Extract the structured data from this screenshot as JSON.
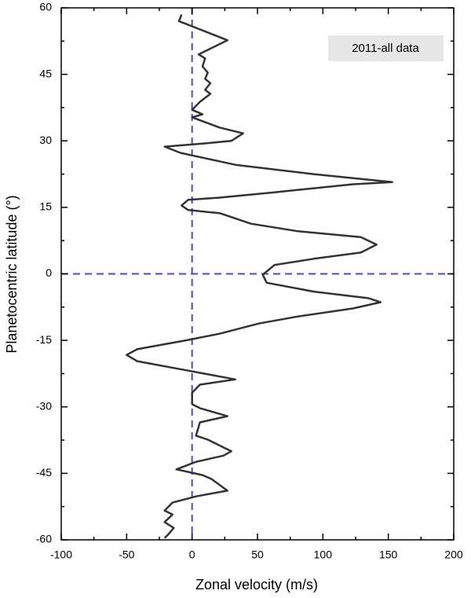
{
  "chart_data": {
    "type": "line",
    "x_label": "Zonal velocity (m/s)",
    "y_label": "Planetocentric latitude (°)",
    "annotation": "2011-all data",
    "xlim": [
      -100,
      200
    ],
    "xticks": [
      -100,
      -50,
      0,
      50,
      100,
      150,
      200
    ],
    "ylim": [
      -60,
      60
    ],
    "yticks": [
      -60,
      -45,
      -30,
      -15,
      0,
      15,
      30,
      45,
      60
    ],
    "reference_lines": {
      "x": 0,
      "y": 0,
      "color": "#4a4ad0"
    },
    "series": [
      {
        "color": "#333333",
        "x": [
          -8,
          -10,
          27,
          5,
          10,
          8,
          12,
          10,
          14,
          10,
          14,
          6,
          0,
          8,
          0,
          21,
          39,
          30,
          9,
          -21,
          -9,
          33,
          93,
          153,
          123,
          63,
          21,
          -3,
          -8,
          -3,
          21,
          45,
          81,
          129,
          141,
          129,
          93,
          63,
          54,
          57,
          93,
          135,
          144,
          123,
          81,
          51,
          21,
          -3,
          -42,
          -50,
          -42,
          -9,
          33,
          6,
          0,
          0,
          6,
          27,
          6,
          3,
          12,
          30,
          24,
          3,
          -12,
          8,
          15,
          27,
          3,
          -15,
          -21,
          -15,
          -21,
          -14,
          -18,
          -21
        ],
        "values": [
          58.5,
          57,
          52.7,
          49.5,
          48.6,
          46.8,
          45.4,
          44,
          43,
          41.5,
          40.6,
          38.8,
          37,
          36,
          35.3,
          33,
          31.7,
          30,
          29.4,
          28.7,
          27.3,
          24.6,
          22.5,
          20.7,
          20.2,
          18.4,
          17.2,
          16.7,
          15.4,
          14.4,
          13.7,
          11.3,
          9.6,
          8.3,
          6.6,
          4.8,
          3.4,
          2,
          -0.2,
          -2,
          -4,
          -5.5,
          -6.4,
          -7.8,
          -9.6,
          -11.2,
          -13.5,
          -14.9,
          -17,
          -18.3,
          -19.7,
          -21.5,
          -23.8,
          -25,
          -26.8,
          -29.4,
          -30.3,
          -32.1,
          -33.5,
          -36.5,
          -37.4,
          -40,
          -41,
          -42.4,
          -44.1,
          -45.4,
          -46.3,
          -48.9,
          -50.2,
          -51.6,
          -53.4,
          -54.3,
          -56,
          -57.3,
          -58.7,
          -59.6
        ]
      }
    ]
  }
}
